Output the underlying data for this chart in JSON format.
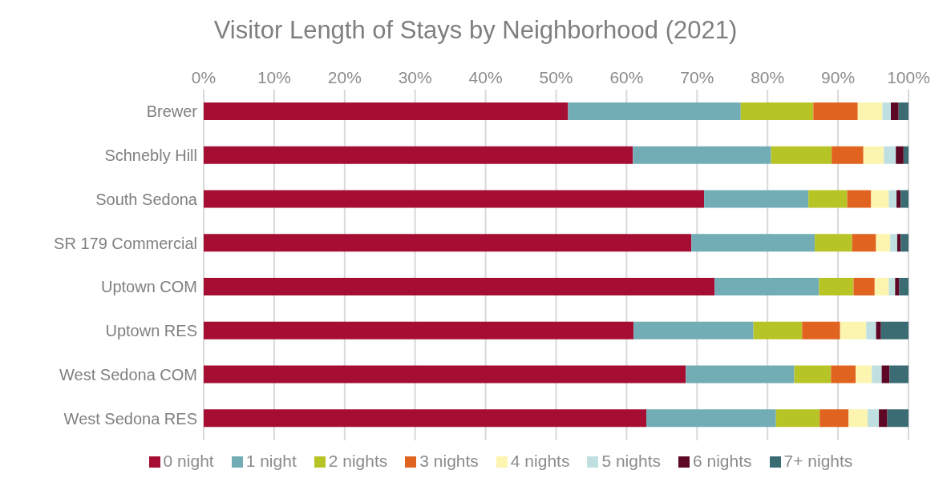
{
  "chart_data": {
    "type": "bar",
    "title": "Visitor Length of Stays by Neighborhood (2021)",
    "orientation": "horizontal",
    "stacked": true,
    "categories": [
      "Brewer",
      "Schnebly Hill",
      "South Sedona",
      "SR 179 Commercial",
      "Uptown COM",
      "Uptown RES",
      "West Sedona COM",
      "West Sedona RES"
    ],
    "series": [
      {
        "name": "0 night",
        "color": "#a50d33",
        "values": [
          51.7,
          60.9,
          71.0,
          69.2,
          72.5,
          61.0,
          68.4,
          62.8
        ]
      },
      {
        "name": "1 night",
        "color": "#72adb6",
        "values": [
          24.5,
          19.6,
          14.8,
          17.5,
          14.8,
          17.0,
          15.4,
          18.4
        ]
      },
      {
        "name": "2 nights",
        "color": "#b6c426",
        "values": [
          10.3,
          8.6,
          5.5,
          5.3,
          4.9,
          6.9,
          5.2,
          6.2
        ]
      },
      {
        "name": "3 nights",
        "color": "#e06420",
        "values": [
          6.3,
          4.5,
          3.4,
          3.4,
          3.0,
          5.4,
          3.5,
          4.1
        ]
      },
      {
        "name": "4 nights",
        "color": "#fcf5b0",
        "values": [
          3.5,
          2.9,
          2.5,
          2.0,
          2.0,
          3.7,
          2.3,
          2.7
        ]
      },
      {
        "name": "5 nights",
        "color": "#c0dfe0",
        "values": [
          1.2,
          1.7,
          1.1,
          1.0,
          0.9,
          1.4,
          1.4,
          1.6
        ]
      },
      {
        "name": "6 nights",
        "color": "#5e0825",
        "values": [
          1.1,
          1.1,
          0.6,
          0.5,
          0.6,
          0.7,
          1.1,
          1.2
        ]
      },
      {
        "name": "7+ nights",
        "color": "#3b6c73",
        "values": [
          1.4,
          0.7,
          1.1,
          1.1,
          1.3,
          3.9,
          2.7,
          3.0
        ]
      }
    ],
    "xlim": [
      0,
      100
    ],
    "xticks": [
      {
        "value": 0,
        "label": "0%"
      },
      {
        "value": 10,
        "label": "10%"
      },
      {
        "value": 20,
        "label": "20%"
      },
      {
        "value": 30,
        "label": "30%"
      },
      {
        "value": 40,
        "label": "40%"
      },
      {
        "value": 50,
        "label": "50%"
      },
      {
        "value": 60,
        "label": "60%"
      },
      {
        "value": 70,
        "label": "70%"
      },
      {
        "value": 80,
        "label": "80%"
      },
      {
        "value": 90,
        "label": "90%"
      },
      {
        "value": 100,
        "label": "100%"
      }
    ],
    "grid": "x",
    "legend": "bottom"
  }
}
